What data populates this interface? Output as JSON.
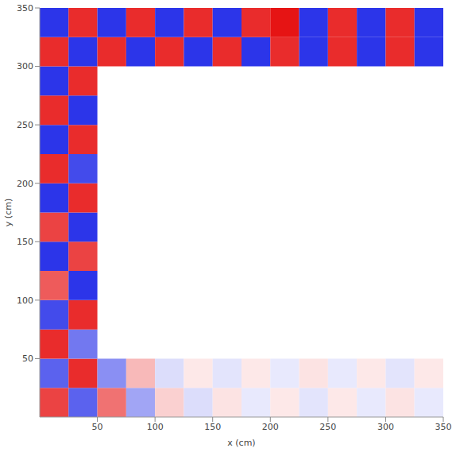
{
  "chart_data": {
    "type": "heatmap",
    "x_label": "x (cm)",
    "y_label": "y (cm)",
    "xlim": [
      0,
      350
    ],
    "ylim": [
      0,
      350
    ],
    "xticks": [
      50,
      100,
      150,
      200,
      250,
      300,
      350
    ],
    "yticks": [
      50,
      100,
      150,
      200,
      250,
      300,
      350
    ],
    "grid": false,
    "x_edges": [
      0,
      25,
      50,
      75,
      100,
      125,
      150,
      175,
      200,
      225,
      250,
      275,
      300,
      325,
      350
    ],
    "y_edges": [
      0,
      25,
      50,
      75,
      100,
      125,
      150,
      175,
      200,
      225,
      250,
      275,
      300,
      325,
      350
    ],
    "color_range": [
      -1,
      1
    ],
    "cells": [
      [
        0.8,
        -0.7,
        0.6,
        -0.4,
        0.2,
        -0.15,
        0.12,
        -0.1,
        0.1,
        -0.12,
        0.1,
        -0.1,
        0.12,
        -0.1
      ],
      [
        -0.7,
        0.9,
        -0.5,
        0.3,
        -0.15,
        0.1,
        -0.12,
        0.1,
        -0.1,
        0.12,
        -0.1,
        0.1,
        -0.12,
        0.1
      ],
      [
        0.9,
        -0.6,
        null,
        null,
        null,
        null,
        null,
        null,
        null,
        null,
        null,
        null,
        null,
        null
      ],
      [
        -0.8,
        0.9,
        null,
        null,
        null,
        null,
        null,
        null,
        null,
        null,
        null,
        null,
        null,
        null
      ],
      [
        0.7,
        -0.9,
        null,
        null,
        null,
        null,
        null,
        null,
        null,
        null,
        null,
        null,
        null,
        null
      ],
      [
        -0.9,
        0.8,
        null,
        null,
        null,
        null,
        null,
        null,
        null,
        null,
        null,
        null,
        null,
        null
      ],
      [
        0.8,
        -0.9,
        null,
        null,
        null,
        null,
        null,
        null,
        null,
        null,
        null,
        null,
        null,
        null
      ],
      [
        -0.9,
        0.9,
        null,
        null,
        null,
        null,
        null,
        null,
        null,
        null,
        null,
        null,
        null,
        null
      ],
      [
        0.9,
        -0.8,
        null,
        null,
        null,
        null,
        null,
        null,
        null,
        null,
        null,
        null,
        null,
        null
      ],
      [
        -0.9,
        0.9,
        null,
        null,
        null,
        null,
        null,
        null,
        null,
        null,
        null,
        null,
        null,
        null
      ],
      [
        0.9,
        -0.9,
        null,
        null,
        null,
        null,
        null,
        null,
        null,
        null,
        null,
        null,
        null,
        null
      ],
      [
        -0.9,
        0.9,
        null,
        null,
        null,
        null,
        null,
        null,
        null,
        null,
        null,
        null,
        null,
        null
      ],
      [
        0.9,
        -0.9,
        0.9,
        -0.9,
        0.9,
        -0.9,
        0.9,
        -0.9,
        0.9,
        -0.9,
        0.9,
        -0.9,
        0.9,
        -0.9
      ],
      [
        -0.9,
        0.9,
        -0.9,
        0.9,
        -0.9,
        0.9,
        -0.9,
        0.9,
        1.0,
        -0.9,
        0.9,
        -0.9,
        0.9,
        -0.9
      ]
    ]
  }
}
